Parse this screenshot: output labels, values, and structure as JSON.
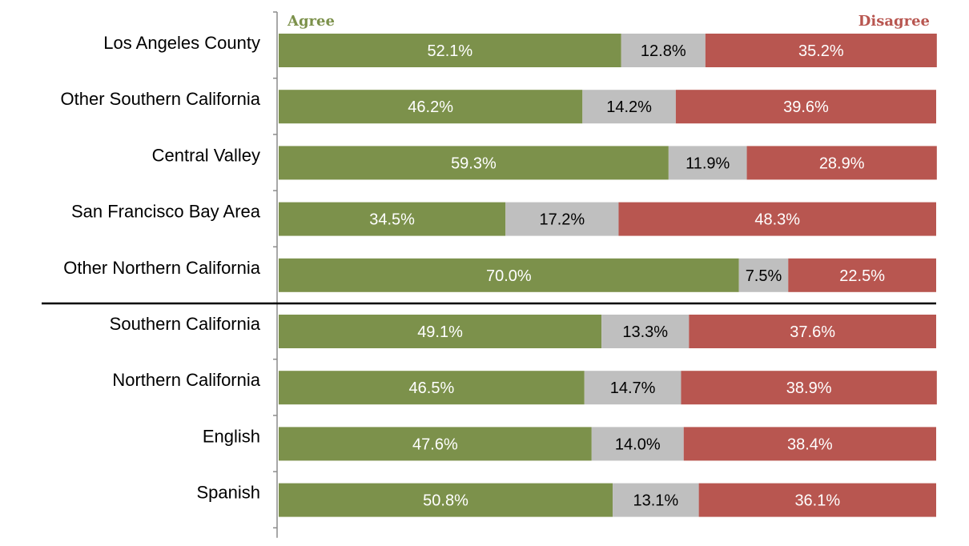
{
  "chart_data": {
    "type": "bar",
    "orientation": "horizontal",
    "stacked": true,
    "value_format": "percent",
    "categories": [
      "Los Angeles County",
      "Other Southern California",
      "Central Valley",
      "San Francisco Bay Area",
      "Other Northern California",
      "Southern California",
      "Northern California",
      "English",
      "Spanish"
    ],
    "series": [
      {
        "name": "Agree",
        "color": "#7c914b",
        "label_color": "#ffffff",
        "values": [
          52.1,
          46.2,
          59.3,
          34.5,
          70.0,
          49.1,
          46.5,
          47.6,
          50.8
        ],
        "labels": [
          "52.1%",
          "46.2%",
          "59.3%",
          "34.5%",
          "70.0%",
          "49.1%",
          "46.5%",
          "47.6%",
          "50.8%"
        ]
      },
      {
        "color": "#bfbfbf",
        "label_color": "#000000",
        "values": [
          12.8,
          14.2,
          11.9,
          17.2,
          7.5,
          13.3,
          14.7,
          14.0,
          13.1
        ],
        "labels": [
          "12.8%",
          "14.2%",
          "11.9%",
          "17.2%",
          "7.5%",
          "13.3%",
          "14.7%",
          "14.0%",
          "13.1%"
        ]
      },
      {
        "name": "Disagree",
        "color": "#b85650",
        "label_color": "#ffffff",
        "values": [
          35.2,
          39.6,
          28.9,
          48.3,
          22.5,
          37.6,
          38.9,
          38.4,
          36.1
        ],
        "labels": [
          "35.2%",
          "39.6%",
          "28.9%",
          "48.3%",
          "22.5%",
          "37.6%",
          "38.9%",
          "38.4%",
          "36.1%"
        ]
      }
    ],
    "legend_position": "top",
    "divider_after_category": "Other Northern California",
    "xlim": [
      0,
      100
    ],
    "grid": false,
    "legend_colors": {
      "agree": "#7c914b",
      "disagree": "#b85650"
    }
  }
}
